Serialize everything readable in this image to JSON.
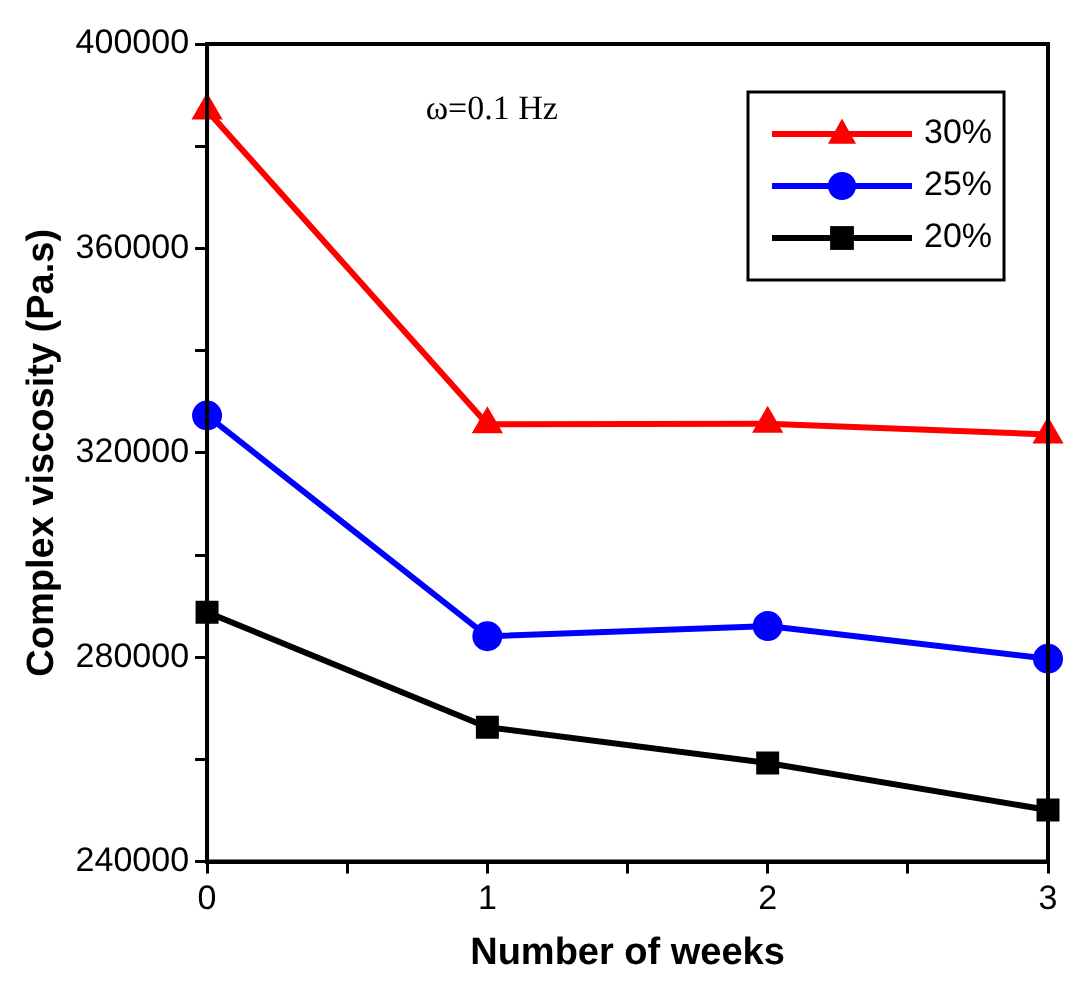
{
  "chart_data": {
    "type": "line",
    "xlabel": "Number of weeks",
    "ylabel": "Complex viscosity (Pa.s)",
    "annotations": [
      "ω=0.1 Hz"
    ],
    "x": [
      0,
      1,
      2,
      3
    ],
    "xlim": [
      0,
      3
    ],
    "xticks": [
      0,
      {
        "value": 0.5,
        "label": null
      },
      1,
      {
        "value": 1.5,
        "label": null
      },
      2,
      {
        "value": 2.5,
        "label": null
      },
      3
    ],
    "ylim": [
      240000,
      400000
    ],
    "yticks": [
      240000,
      {
        "value": 260000,
        "label": null
      },
      280000,
      {
        "value": 300000,
        "label": null
      },
      320000,
      {
        "value": 340000,
        "label": null
      },
      360000,
      {
        "value": 380000,
        "label": null
      },
      400000
    ],
    "series": [
      {
        "name": "30%",
        "color": "#ff0000",
        "marker": "triangle",
        "values": [
          387000,
          325600,
          325700,
          323600
        ]
      },
      {
        "name": "25%",
        "color": "#0000ff",
        "marker": "circle",
        "values": [
          327300,
          284100,
          286100,
          279700
        ]
      },
      {
        "name": "20%",
        "color": "#000000",
        "marker": "square",
        "values": [
          288800,
          266300,
          259300,
          250100
        ]
      }
    ],
    "legend": "top right",
    "grid": false,
    "line_style": "solid"
  }
}
